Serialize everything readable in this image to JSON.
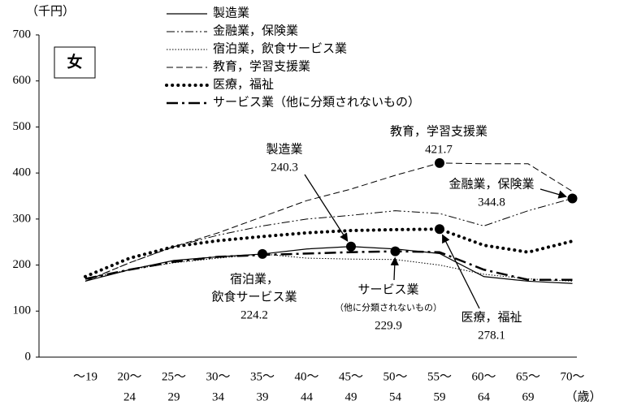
{
  "chart_data": {
    "type": "line",
    "title": "女",
    "y_unit": "（千円）",
    "x_unit": "（歳）",
    "categories": [
      [
        "〜19"
      ],
      [
        "20〜",
        "24"
      ],
      [
        "25〜",
        "29"
      ],
      [
        "30〜",
        "34"
      ],
      [
        "35〜",
        "39"
      ],
      [
        "40〜",
        "44"
      ],
      [
        "45〜",
        "49"
      ],
      [
        "50〜",
        "54"
      ],
      [
        "55〜",
        "59"
      ],
      [
        "60〜",
        "64"
      ],
      [
        "65〜",
        "69"
      ],
      [
        "70〜"
      ]
    ],
    "ylim": [
      0,
      700
    ],
    "yticks": [
      0,
      100,
      200,
      300,
      400,
      500,
      600,
      700
    ],
    "series": [
      {
        "name": "製造業",
        "color": "#000",
        "style": "solid",
        "values": [
          165,
          190,
          210,
          218,
          224,
          235,
          240.3,
          235,
          225,
          175,
          165,
          160
        ],
        "value_labels": [
          null,
          null,
          null,
          null,
          null,
          null,
          "240.3",
          null,
          null,
          null,
          null,
          null
        ],
        "annotation": [
          "製造業"
        ]
      },
      {
        "name": "金融業，保険業",
        "color": "#000",
        "style": "dashdotdot",
        "values": [
          165,
          205,
          240,
          265,
          285,
          300,
          308,
          318,
          312,
          285,
          318,
          344.8
        ],
        "value_labels": [
          null,
          null,
          null,
          null,
          null,
          null,
          null,
          null,
          null,
          null,
          null,
          "344.8"
        ],
        "annotation": [
          "金融業，保険業"
        ]
      },
      {
        "name": "宿泊業，飲食サービス業",
        "color": "#000",
        "style": "dotted",
        "values": [
          170,
          190,
          205,
          215,
          224.2,
          215,
          213,
          212,
          200,
          180,
          170,
          165
        ],
        "value_labels": [
          null,
          null,
          null,
          null,
          "224.2",
          null,
          null,
          null,
          null,
          null,
          null,
          null
        ],
        "annotation": [
          "宿泊業，",
          "飲食サービス業"
        ]
      },
      {
        "name": "教育，学習支援業",
        "color": "#000",
        "style": "dashed",
        "values": [
          165,
          205,
          240,
          270,
          305,
          340,
          365,
          395,
          421.7,
          420,
          420,
          360
        ],
        "value_labels": [
          null,
          null,
          null,
          null,
          null,
          null,
          null,
          null,
          "421.7",
          null,
          null,
          null
        ],
        "annotation": [
          "教育，学習支援業"
        ]
      },
      {
        "name": "医療，福祉",
        "color": "#000",
        "style": "dotted-thick",
        "values": [
          175,
          215,
          240,
          253,
          262,
          270,
          275,
          277,
          278.1,
          243,
          228,
          252
        ],
        "value_labels": [
          null,
          null,
          null,
          null,
          null,
          null,
          null,
          null,
          "278.1",
          null,
          null,
          null
        ],
        "annotation": [
          "医療，福祉"
        ]
      },
      {
        "name": "サービス業（他に分類されないもの）",
        "color": "#000",
        "style": "dashdot-thick",
        "values": [
          170,
          190,
          207,
          218,
          222,
          225,
          228,
          229.9,
          228,
          190,
          168,
          168
        ],
        "value_labels": [
          null,
          null,
          null,
          null,
          null,
          null,
          null,
          "229.9",
          null,
          null,
          null,
          null
        ],
        "annotation": [
          "サービス業",
          "（他に分類されないもの）"
        ]
      }
    ]
  }
}
